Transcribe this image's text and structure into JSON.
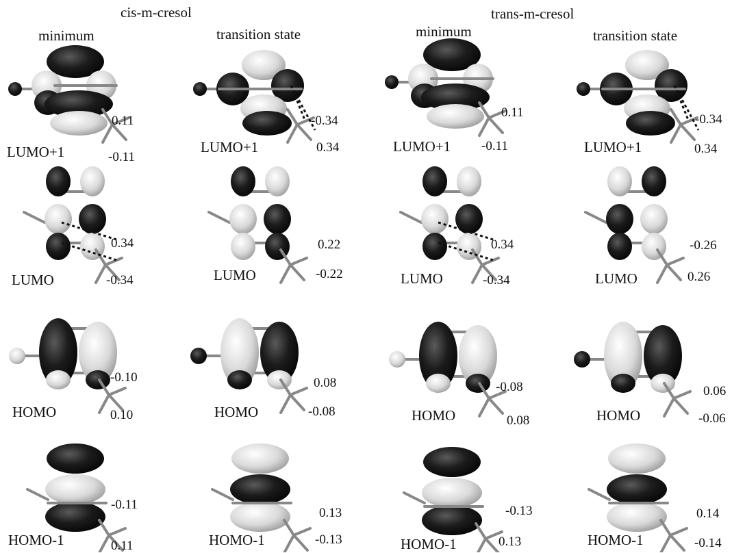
{
  "headers": {
    "cis": "cis-m-cresol",
    "trans": "trans-m-cresol",
    "columns": [
      "minimum",
      "transition state",
      "minimum",
      "transition state"
    ]
  },
  "orbitals": [
    {
      "label": "LUMO+1",
      "values": [
        [
          "0.11",
          "-0.11"
        ],
        [
          "-0.34",
          "0.34"
        ],
        [
          "0.11",
          "-0.11"
        ],
        [
          "-0.34",
          "0.34"
        ]
      ]
    },
    {
      "label": "LUMO",
      "values": [
        [
          "0.34",
          "-0.34"
        ],
        [
          "0.22",
          "-0.22"
        ],
        [
          "0.34",
          "-0.34"
        ],
        [
          "-0.26",
          "0.26"
        ]
      ]
    },
    {
      "label": "HOMO",
      "values": [
        [
          "-0.10",
          "0.10"
        ],
        [
          "0.08",
          "-0.08"
        ],
        [
          "-0.08",
          "0.08"
        ],
        [
          "0.06",
          "-0.06"
        ]
      ]
    },
    {
      "label": "HOMO-1",
      "values": [
        [
          "-0.11",
          "0.11"
        ],
        [
          "0.13",
          "-0.13"
        ],
        [
          "-0.13",
          "0.13"
        ],
        [
          "0.14",
          "-0.14"
        ]
      ]
    }
  ],
  "colors": {
    "dark_lobe": "#1c1c1c",
    "light_lobe": "#d9d9d9",
    "bond": "#888888",
    "dashed_line": "#111111"
  }
}
